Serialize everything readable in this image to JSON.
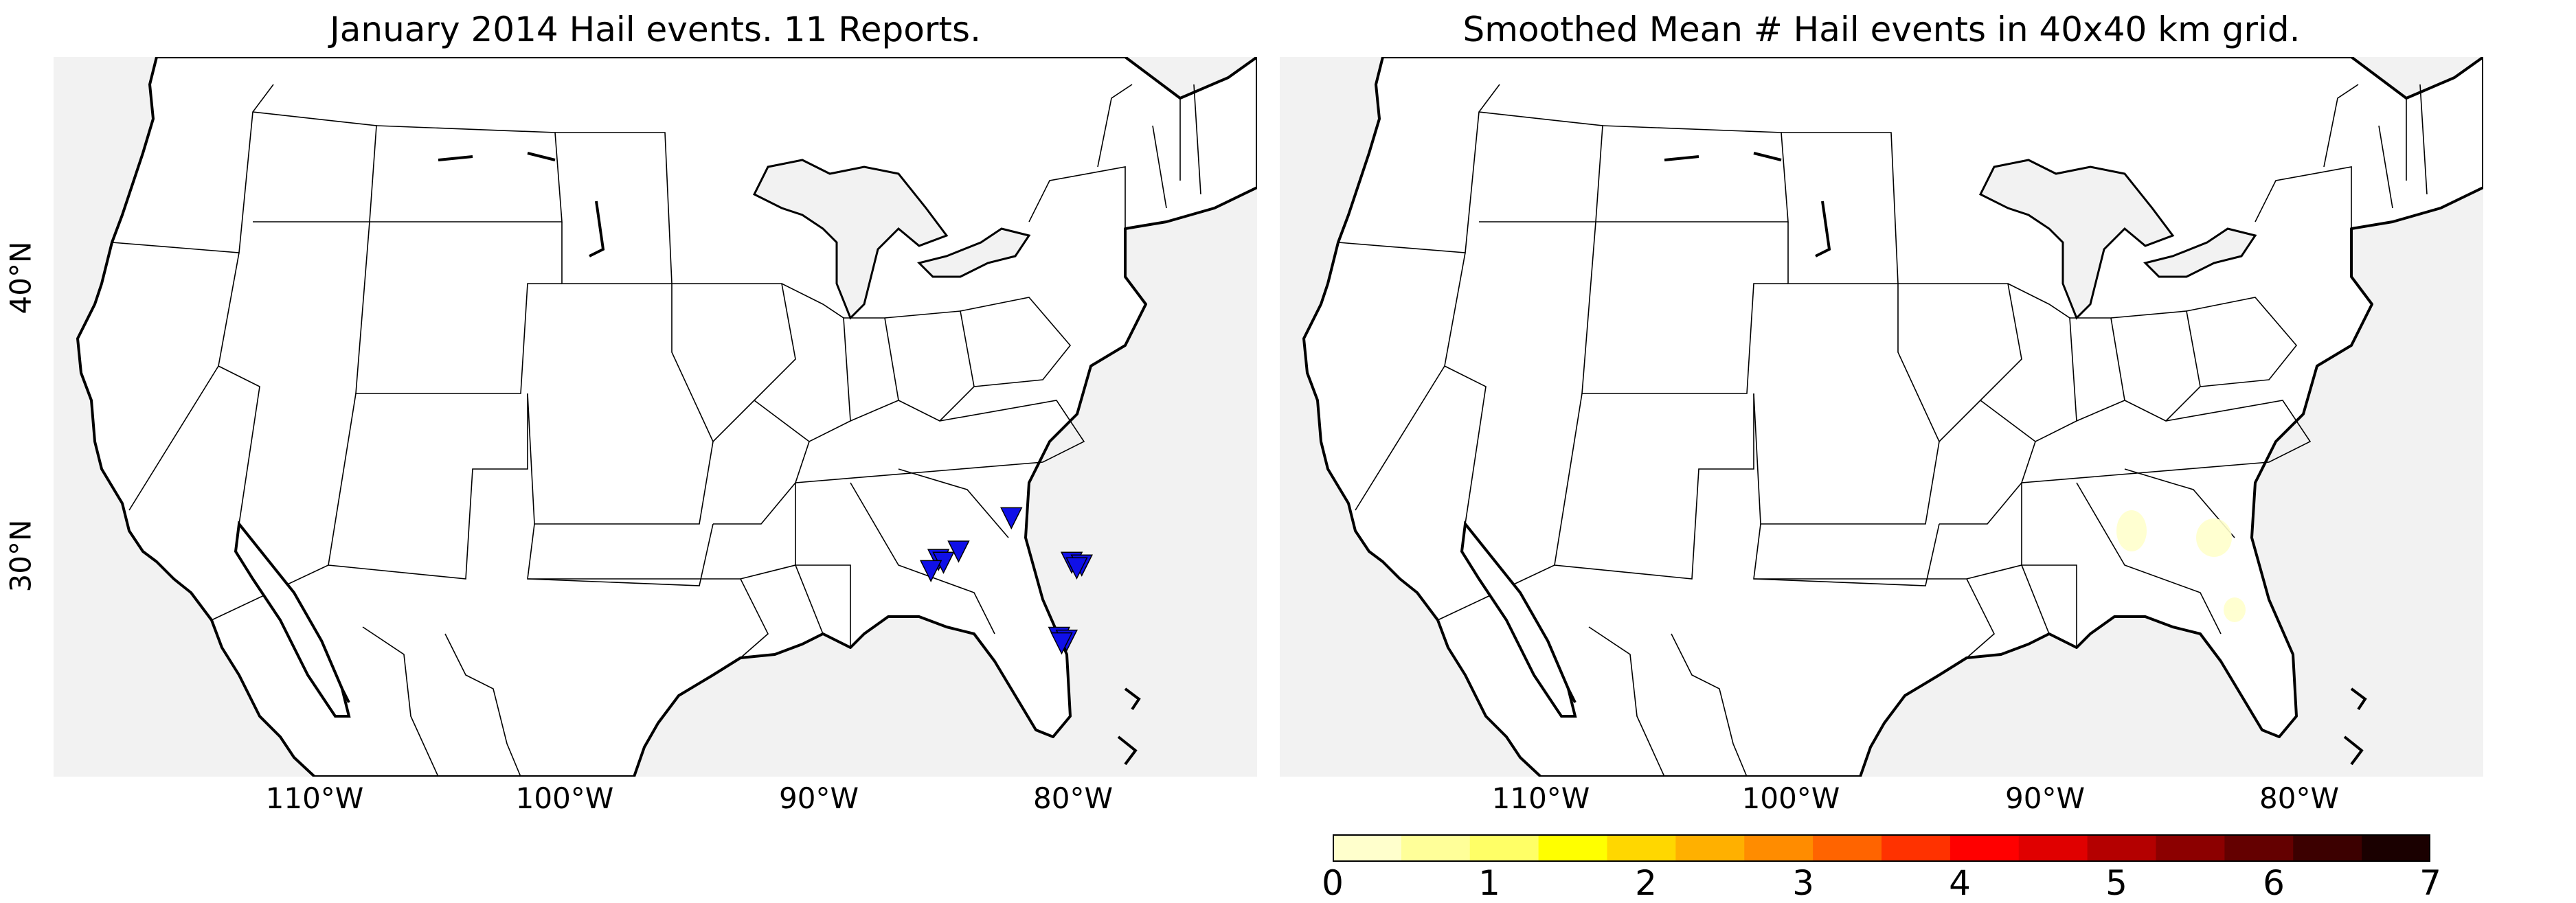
{
  "left_panel": {
    "title": "January 2014 Hail events. 11 Reports.",
    "report_marker_color": "#1010e8",
    "reports": [
      {
        "lat": 31.2,
        "lon": -84.2
      },
      {
        "lat": 30.0,
        "lon": -86.3
      },
      {
        "lat": 29.7,
        "lon": -87.1
      },
      {
        "lat": 29.6,
        "lon": -86.9
      },
      {
        "lat": 29.3,
        "lon": -87.4
      },
      {
        "lat": 29.6,
        "lon": -81.8
      },
      {
        "lat": 29.5,
        "lon": -81.4
      },
      {
        "lat": 29.4,
        "lon": -81.6
      },
      {
        "lat": 26.9,
        "lon": -82.3
      },
      {
        "lat": 26.8,
        "lon": -82.0
      },
      {
        "lat": 26.7,
        "lon": -82.2
      }
    ]
  },
  "right_panel": {
    "title": "Smoothed Mean # Hail events in 40x40 km grid."
  },
  "axes": {
    "lon_labels": [
      "110°W",
      "100°W",
      "90°W",
      "80°W"
    ],
    "lat_labels": [
      "40°N",
      "30°N"
    ]
  },
  "colorbar": {
    "ticks": [
      "0",
      "1",
      "2",
      "3",
      "4",
      "5",
      "6",
      "7"
    ],
    "min": 0,
    "max": 7,
    "colors": [
      "#ffffcc",
      "#ffff99",
      "#ffff66",
      "#ffff00",
      "#ffd700",
      "#ffb000",
      "#ff8c00",
      "#ff6400",
      "#ff3200",
      "#ff0000",
      "#e00000",
      "#b40000",
      "#8c0000",
      "#640000",
      "#3c0000",
      "#1a0000"
    ]
  },
  "map_colors": {
    "land": "#ffffff",
    "water": "#f2f2f2",
    "border": "#000000"
  }
}
